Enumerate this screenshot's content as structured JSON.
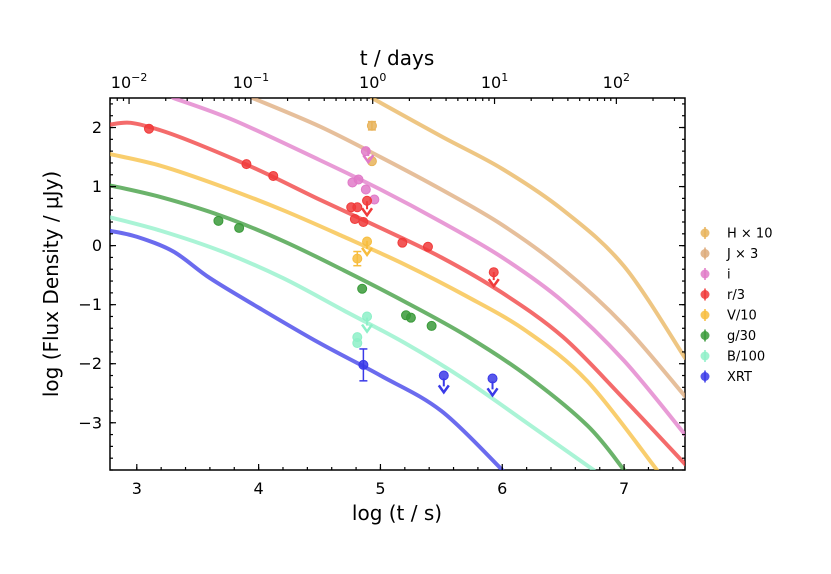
{
  "chart_data": {
    "type": "scatter",
    "xlabel_bottom": "log (t / s)",
    "xlabel_top": "t / days",
    "ylabel": "log (Flux Density / μJy)",
    "xlim": [
      2.78,
      7.5
    ],
    "ylim": [
      -3.8,
      2.5
    ],
    "x_ticks": [
      "3",
      "4",
      "5",
      "6",
      "7"
    ],
    "y_ticks": [
      "2",
      "1",
      "0",
      "−1",
      "−2",
      "−3"
    ],
    "top_ticks": [
      {
        "days": 0.01,
        "base": "10",
        "exp": "−2"
      },
      {
        "days": 0.1,
        "base": "10",
        "exp": "−1"
      },
      {
        "days": 1,
        "base": "10",
        "exp": "0"
      },
      {
        "days": 10,
        "base": "10",
        "exp": "1"
      },
      {
        "days": 100,
        "base": "10",
        "exp": "2"
      }
    ],
    "legend_position": "right",
    "series": [
      {
        "name": "H × 10",
        "color": "#e8b35a",
        "model": [
          [
            4.93,
            2.5
          ],
          [
            5.5,
            1.85
          ],
          [
            6.0,
            1.3
          ],
          [
            6.5,
            0.6
          ],
          [
            7.0,
            -0.35
          ],
          [
            7.5,
            -1.9
          ]
        ],
        "points": [
          [
            4.93,
            2.03,
            0.07
          ],
          [
            4.93,
            1.43,
            0.05
          ]
        ]
      },
      {
        "name": "J × 3",
        "color": "#ddaa7a",
        "model": [
          [
            3.95,
            2.5
          ],
          [
            4.5,
            2.02
          ],
          [
            5.0,
            1.5
          ],
          [
            5.5,
            0.95
          ],
          [
            6.0,
            0.35
          ],
          [
            6.5,
            -0.4
          ],
          [
            7.0,
            -1.35
          ],
          [
            7.5,
            -2.55
          ]
        ],
        "points": []
      },
      {
        "name": "i",
        "color": "#e07ac8",
        "model": [
          [
            3.3,
            2.5
          ],
          [
            3.8,
            2.12
          ],
          [
            4.5,
            1.45
          ],
          [
            5.0,
            0.95
          ],
          [
            5.5,
            0.4
          ],
          [
            6.0,
            -0.2
          ],
          [
            6.5,
            -0.95
          ],
          [
            7.0,
            -1.95
          ],
          [
            7.5,
            -3.2
          ]
        ],
        "points": [
          [
            4.77,
            1.07,
            0.04
          ],
          [
            4.82,
            1.12,
            0.04
          ],
          [
            4.88,
            1.6,
            0.05
          ],
          [
            4.88,
            0.95,
            0.04
          ],
          [
            4.95,
            0.78,
            0.04
          ],
          [
            4.9,
            1.55,
            0,
            "ul"
          ]
        ]
      },
      {
        "name": "r/3",
        "color": "#f03a3a",
        "model": [
          [
            2.78,
            2.05
          ],
          [
            2.95,
            2.08
          ],
          [
            3.2,
            1.95
          ],
          [
            3.5,
            1.72
          ],
          [
            4.0,
            1.28
          ],
          [
            4.5,
            0.78
          ],
          [
            5.0,
            0.3
          ],
          [
            5.5,
            -0.2
          ],
          [
            6.0,
            -0.8
          ],
          [
            6.5,
            -1.55
          ],
          [
            7.0,
            -2.6
          ],
          [
            7.5,
            -3.7
          ]
        ],
        "points": [
          [
            3.1,
            1.98,
            0.04
          ],
          [
            3.9,
            1.38,
            0.05
          ],
          [
            4.12,
            1.18,
            0.04
          ],
          [
            4.76,
            0.65,
            0.04
          ],
          [
            4.81,
            0.65,
            0.04
          ],
          [
            4.79,
            0.45,
            0.04
          ],
          [
            4.86,
            0.4,
            0.04
          ],
          [
            4.89,
            0.76,
            0.04
          ],
          [
            5.18,
            0.05,
            0.04
          ],
          [
            5.39,
            -0.02,
            0.04
          ],
          [
            4.89,
            0.65,
            0,
            "ul"
          ],
          [
            5.93,
            -0.45,
            0.04
          ],
          [
            5.93,
            -0.55,
            0,
            "ul"
          ]
        ]
      },
      {
        "name": "V/10",
        "color": "#f7bd3e",
        "model": [
          [
            2.78,
            1.55
          ],
          [
            3.2,
            1.35
          ],
          [
            3.7,
            1.0
          ],
          [
            4.2,
            0.6
          ],
          [
            4.7,
            0.15
          ],
          [
            5.2,
            -0.32
          ],
          [
            5.7,
            -0.85
          ],
          [
            6.2,
            -1.45
          ],
          [
            6.7,
            -2.3
          ],
          [
            7.27,
            -3.8
          ]
        ],
        "points": [
          [
            4.81,
            -0.22,
            0.12
          ],
          [
            4.89,
            0.07,
            0.05
          ],
          [
            4.89,
            -0.02,
            0,
            "ul"
          ]
        ]
      },
      {
        "name": "g/30",
        "color": "#3a9a3a",
        "model": [
          [
            2.78,
            1.02
          ],
          [
            3.2,
            0.82
          ],
          [
            3.7,
            0.5
          ],
          [
            4.2,
            0.08
          ],
          [
            4.7,
            -0.42
          ],
          [
            5.2,
            -0.95
          ],
          [
            5.7,
            -1.52
          ],
          [
            6.2,
            -2.2
          ],
          [
            6.7,
            -3.05
          ],
          [
            7.0,
            -3.8
          ]
        ],
        "points": [
          [
            3.67,
            0.42,
            0.04
          ],
          [
            3.84,
            0.3,
            0.04
          ],
          [
            4.85,
            -0.73,
            0.04
          ],
          [
            5.21,
            -1.18,
            0.04
          ],
          [
            5.25,
            -1.22,
            0.04
          ],
          [
            5.42,
            -1.36,
            0.04
          ]
        ]
      },
      {
        "name": "B/100",
        "color": "#8df0c8",
        "model": [
          [
            2.78,
            0.48
          ],
          [
            3.2,
            0.25
          ],
          [
            3.7,
            -0.1
          ],
          [
            4.2,
            -0.55
          ],
          [
            4.7,
            -1.1
          ],
          [
            5.2,
            -1.65
          ],
          [
            5.7,
            -2.28
          ],
          [
            6.2,
            -3.0
          ],
          [
            6.75,
            -3.8
          ]
        ],
        "points": [
          [
            4.81,
            -1.55,
            0.05
          ],
          [
            4.81,
            -1.65,
            0.05
          ],
          [
            4.89,
            -1.2,
            0.05
          ],
          [
            4.89,
            -1.32,
            0,
            "ul"
          ]
        ]
      },
      {
        "name": "XRT",
        "color": "#3a3ae8",
        "model": [
          [
            2.78,
            0.25
          ],
          [
            3.0,
            0.15
          ],
          [
            3.3,
            -0.1
          ],
          [
            3.6,
            -0.55
          ],
          [
            4.0,
            -1.05
          ],
          [
            4.5,
            -1.65
          ],
          [
            5.0,
            -2.2
          ],
          [
            5.5,
            -2.8
          ],
          [
            6.0,
            -3.8
          ]
        ],
        "points": [
          [
            4.86,
            -2.02,
            0.27
          ],
          [
            5.52,
            -2.2,
            0.05
          ],
          [
            5.92,
            -2.25,
            0.05
          ],
          [
            5.52,
            -2.35,
            0,
            "ul"
          ],
          [
            5.92,
            -2.4,
            0,
            "ul"
          ]
        ]
      }
    ]
  }
}
